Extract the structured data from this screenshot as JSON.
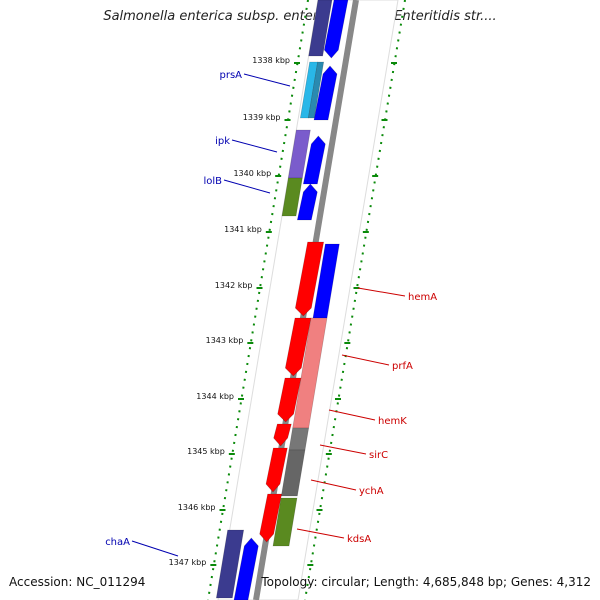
{
  "title": "Salmonella enterica subsp. enterica serovar Enteritidis str....",
  "footer": {
    "accession": "Accession: NC_011294",
    "topology": "Topology: circular; Length: 4,685,848 bp; Genes: 4,312"
  },
  "kbp_ticks": [
    "1338 kbp",
    "1339 kbp",
    "1340 kbp",
    "1341 kbp",
    "1342 kbp",
    "1343 kbp",
    "1344 kbp",
    "1345 kbp",
    "1346 kbp",
    "1347 kbp"
  ],
  "gene_labels": [
    "prsA",
    "ipk",
    "lolB",
    "chaA",
    "hemA",
    "prfA",
    "hemK",
    "sirC",
    "ychA",
    "kdsA"
  ],
  "colors": {
    "left_labels": "#0000b0",
    "right_labels": "#cc0000",
    "ticks": "#007a00",
    "backbone": "#888888",
    "red": "#ff0000",
    "blue": "#0000ff"
  }
}
